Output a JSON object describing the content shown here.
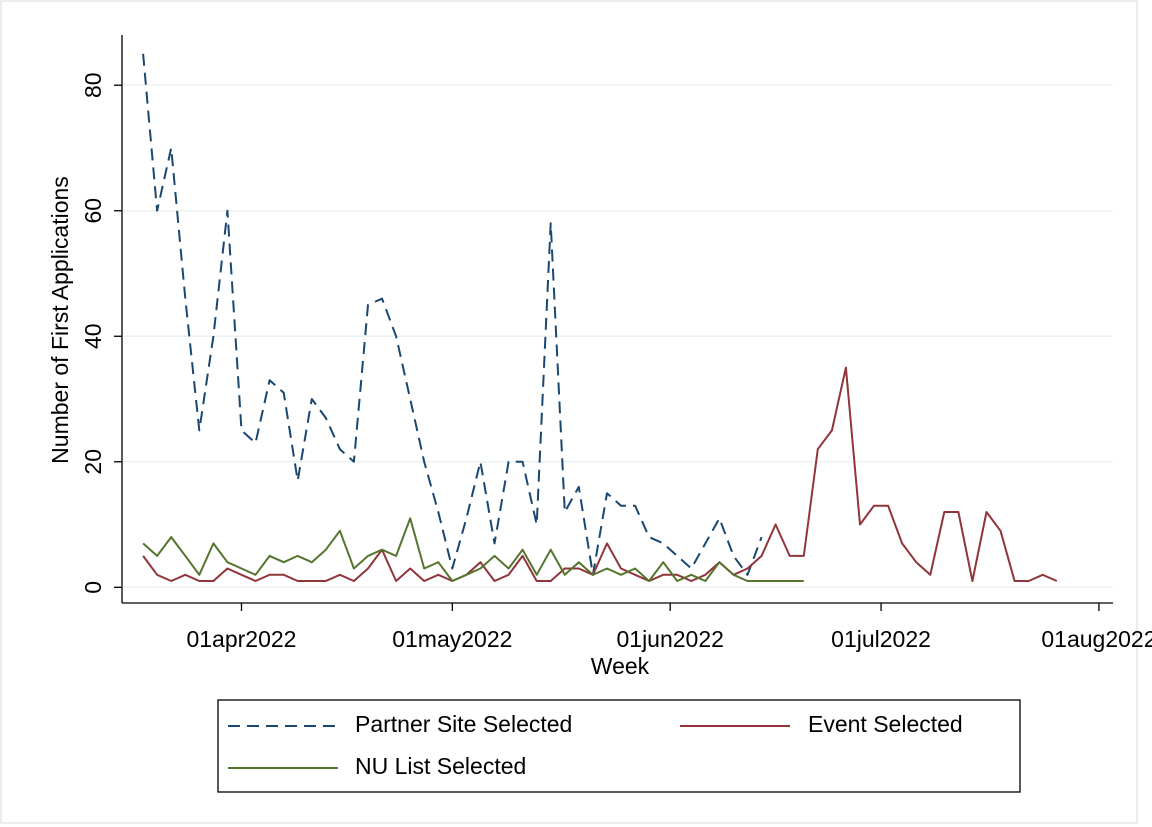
{
  "chart_data": {
    "type": "line",
    "x_label": "Week",
    "y_label": "Number of First Applications",
    "x": [
      "2022-03-18",
      "2022-03-20",
      "2022-03-22",
      "2022-03-24",
      "2022-03-26",
      "2022-03-28",
      "2022-03-30",
      "2022-04-01",
      "2022-04-03",
      "2022-04-05",
      "2022-04-07",
      "2022-04-09",
      "2022-04-11",
      "2022-04-13",
      "2022-04-15",
      "2022-04-17",
      "2022-04-19",
      "2022-04-21",
      "2022-04-23",
      "2022-04-25",
      "2022-04-27",
      "2022-04-29",
      "2022-05-01",
      "2022-05-03",
      "2022-05-05",
      "2022-05-07",
      "2022-05-09",
      "2022-05-11",
      "2022-05-13",
      "2022-05-15",
      "2022-05-17",
      "2022-05-19",
      "2022-05-21",
      "2022-05-23",
      "2022-05-25",
      "2022-05-27",
      "2022-05-29",
      "2022-05-31",
      "2022-06-02",
      "2022-06-04",
      "2022-06-06",
      "2022-06-08",
      "2022-06-10",
      "2022-06-12",
      "2022-06-14",
      "2022-06-16",
      "2022-06-18",
      "2022-06-20",
      "2022-06-22",
      "2022-06-24",
      "2022-06-26",
      "2022-06-28",
      "2022-06-30",
      "2022-07-02",
      "2022-07-04",
      "2022-07-06",
      "2022-07-08",
      "2022-07-10",
      "2022-07-12",
      "2022-07-14",
      "2022-07-16",
      "2022-07-18",
      "2022-07-20",
      "2022-07-22",
      "2022-07-24",
      "2022-07-26"
    ],
    "series": [
      {
        "name": "Partner Site Selected",
        "color": "#1a476f",
        "dashed": true,
        "values": [
          85,
          60,
          70,
          46,
          25,
          40,
          60,
          25,
          23,
          33,
          31,
          17,
          30,
          27,
          22,
          20,
          45,
          46,
          40,
          30,
          20,
          12,
          3,
          11,
          20,
          7,
          20,
          20,
          10,
          58,
          12,
          16,
          2,
          15,
          13,
          13,
          8,
          7,
          5,
          3,
          7,
          11,
          5,
          2,
          8,
          null,
          null,
          null,
          null,
          null,
          null,
          null,
          null,
          null,
          null,
          null,
          null,
          null,
          null,
          null,
          null,
          null,
          null,
          null,
          null,
          null
        ]
      },
      {
        "name": "Event Selected",
        "color": "#90353b",
        "dashed": false,
        "values": [
          5,
          2,
          1,
          2,
          1,
          1,
          3,
          2,
          1,
          2,
          2,
          1,
          1,
          1,
          2,
          1,
          3,
          6,
          1,
          3,
          1,
          2,
          1,
          2,
          4,
          1,
          2,
          5,
          1,
          1,
          3,
          3,
          2,
          7,
          3,
          2,
          1,
          2,
          2,
          1,
          2,
          4,
          2,
          3,
          5,
          10,
          5,
          5,
          22,
          25,
          35,
          10,
          13,
          13,
          7,
          4,
          2,
          12,
          12,
          1,
          12,
          9,
          1,
          1,
          2,
          1
        ]
      },
      {
        "name": "NU List Selected",
        "color": "#55752f",
        "dashed": false,
        "values": [
          7,
          5,
          8,
          5,
          2,
          7,
          4,
          3,
          2,
          5,
          4,
          5,
          4,
          6,
          9,
          3,
          5,
          6,
          5,
          11,
          3,
          4,
          1,
          2,
          3,
          5,
          3,
          6,
          2,
          6,
          2,
          4,
          2,
          3,
          2,
          3,
          1,
          4,
          1,
          2,
          1,
          4,
          2,
          1,
          1,
          1,
          1,
          1,
          null,
          null,
          null,
          null,
          null,
          null,
          null,
          null,
          null,
          null,
          null,
          null,
          null,
          null,
          null,
          null,
          null,
          null
        ]
      }
    ],
    "xlim": [
      "2022-03-15",
      "2022-08-03"
    ],
    "xticks": [
      {
        "value": "2022-04-01",
        "label": "01apr2022"
      },
      {
        "value": "2022-05-01",
        "label": "01may2022"
      },
      {
        "value": "2022-06-01",
        "label": "01jun2022"
      },
      {
        "value": "2022-07-01",
        "label": "01jul2022"
      },
      {
        "value": "2022-08-01",
        "label": "01aug2022"
      }
    ],
    "ylim": [
      -2.5,
      88
    ],
    "yticks": [
      0,
      20,
      40,
      60,
      80
    ],
    "grid": true,
    "legend": "bottom"
  }
}
